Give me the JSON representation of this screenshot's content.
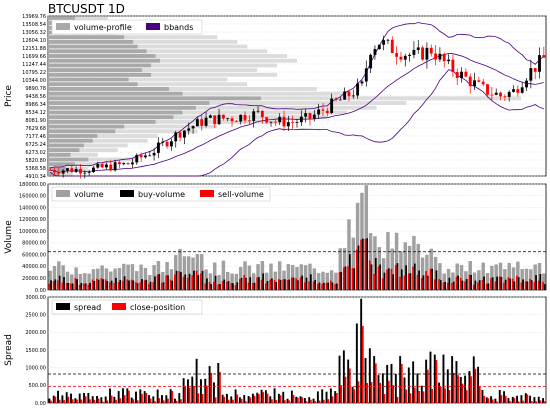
{
  "title": "BTCUSDT 1D",
  "colors": {
    "up": "#000000",
    "down": "#ff0000",
    "vp_dark": "#a9a9a9",
    "vp_light": "#dcdcdc",
    "bbands": "#4b0082",
    "volume": "#a0a0a0",
    "buy_volume": "#000000",
    "sell_volume": "#ff0000",
    "spread": "#000000",
    "close_position": "#ff0000"
  },
  "chart_data": [
    {
      "type": "candlestick",
      "ylabel": "Price",
      "ylim": [
        4910.34,
        13969.76
      ],
      "yticks": [
        "13969.76",
        "13508.54",
        "13056.32",
        "12604.10",
        "12151.88",
        "11699.66",
        "11247.44",
        "10795.22",
        "10344.00",
        "9890.78",
        "9438.56",
        "8986.34",
        "8534.12",
        "8081.90",
        "7629.68",
        "7177.46",
        "6725.24",
        "6273.02",
        "5820.80",
        "5368.58",
        "4910.34"
      ],
      "legend": [
        {
          "name": "volume-profile"
        },
        {
          "name": "bbands"
        }
      ],
      "legend_position": "top-left",
      "grid": true
    },
    {
      "type": "bar",
      "ylabel": "Volume",
      "ylim": [
        0,
        180000
      ],
      "yticks": [
        "180000.00",
        "160000.00",
        "140000.00",
        "120000.00",
        "100000.00",
        "80000.00",
        "60000.00",
        "40000.00",
        "20000.00",
        "0.00"
      ],
      "reference_line": 65000,
      "legend": [
        {
          "name": "volume"
        },
        {
          "name": "buy-volume"
        },
        {
          "name": "sell-volume"
        }
      ],
      "legend_position": "top-left",
      "grid": true
    },
    {
      "type": "bar",
      "ylabel": "Spread",
      "ylim": [
        0,
        3000
      ],
      "yticks": [
        "3000.00",
        "2500.00",
        "2000.00",
        "1500.00",
        "1000.00",
        "500.00",
        "0.00"
      ],
      "reference_lines": [
        820,
        470
      ],
      "legend": [
        {
          "name": "spread"
        },
        {
          "name": "close-position"
        }
      ],
      "legend_position": "top-left",
      "grid": true
    }
  ]
}
